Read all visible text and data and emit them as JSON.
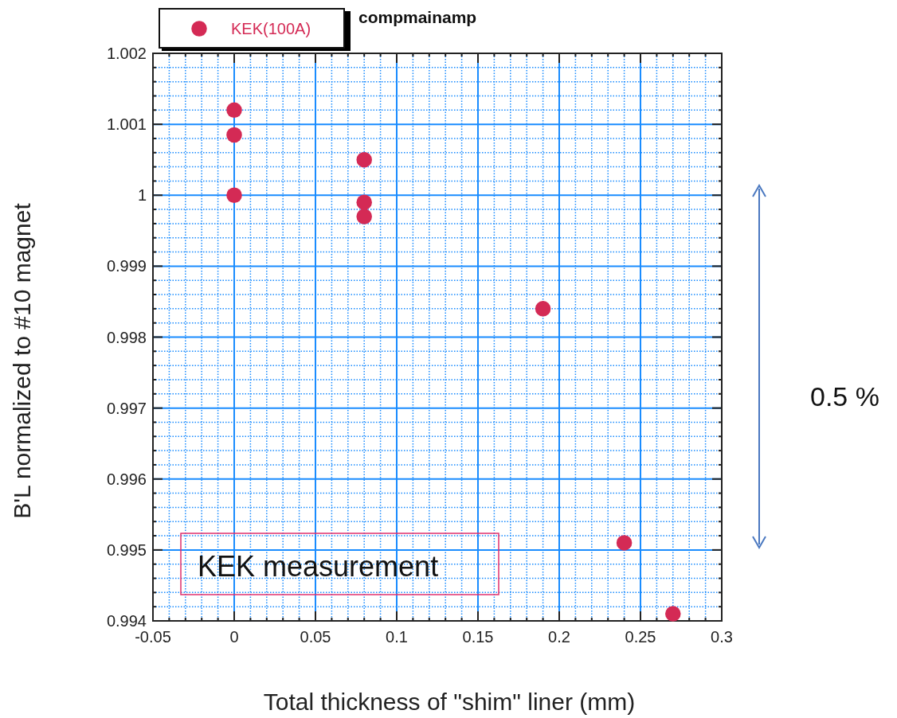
{
  "chart_data": {
    "type": "scatter",
    "title": "compmainamp",
    "xlabel": "Total thickness of \"shim\" liner (mm)",
    "ylabel": "B'L normalized to #10 magnet",
    "series": [
      {
        "name": "KEK(100A)",
        "color": "#d42a55",
        "x": [
          0,
          0,
          0,
          0.08,
          0.08,
          0.08,
          0.19,
          0.24,
          0.27
        ],
        "values": [
          1.0012,
          1.00085,
          1.0,
          1.0005,
          0.9999,
          0.9997,
          0.9984,
          0.9951,
          0.9941
        ]
      }
    ],
    "xlim": [
      -0.05,
      0.3
    ],
    "xticks": [
      -0.05,
      {
        "value": -0.04,
        "label": null
      },
      {
        "value": -0.03,
        "label": null
      },
      {
        "value": -0.02,
        "label": null
      },
      {
        "value": -0.01,
        "label": null
      },
      0,
      {
        "value": 0.01,
        "label": null
      },
      {
        "value": 0.02,
        "label": null
      },
      {
        "value": 0.03,
        "label": null
      },
      {
        "value": 0.04,
        "label": null
      },
      0.05,
      {
        "value": 0.06,
        "label": null
      },
      {
        "value": 0.07,
        "label": null
      },
      {
        "value": 0.08,
        "label": null
      },
      {
        "value": 0.09,
        "label": null
      },
      0.1,
      {
        "value": 0.11,
        "label": null
      },
      {
        "value": 0.12,
        "label": null
      },
      {
        "value": 0.13,
        "label": null
      },
      {
        "value": 0.14,
        "label": null
      },
      0.15,
      {
        "value": 0.16,
        "label": null
      },
      {
        "value": 0.17,
        "label": null
      },
      {
        "value": 0.18,
        "label": null
      },
      {
        "value": 0.19,
        "label": null
      },
      0.2,
      {
        "value": 0.21,
        "label": null
      },
      {
        "value": 0.22,
        "label": null
      },
      {
        "value": 0.23,
        "label": null
      },
      {
        "value": 0.24,
        "label": null
      },
      0.25,
      {
        "value": 0.26,
        "label": null
      },
      {
        "value": 0.27,
        "label": null
      },
      {
        "value": 0.28,
        "label": null
      },
      {
        "value": 0.29,
        "label": null
      },
      0.3
    ],
    "ylim": [
      0.994,
      1.002
    ],
    "yticks": [
      0.994,
      {
        "value": 0.9942,
        "label": null
      },
      {
        "value": 0.9944,
        "label": null
      },
      {
        "value": 0.9946,
        "label": null
      },
      {
        "value": 0.9948,
        "label": null
      },
      0.995,
      {
        "value": 0.9952,
        "label": null
      },
      {
        "value": 0.9954,
        "label": null
      },
      {
        "value": 0.9956,
        "label": null
      },
      {
        "value": 0.9958,
        "label": null
      },
      0.996,
      {
        "value": 0.9962,
        "label": null
      },
      {
        "value": 0.9964,
        "label": null
      },
      {
        "value": 0.9966,
        "label": null
      },
      {
        "value": 0.9968,
        "label": null
      },
      0.997,
      {
        "value": 0.9972,
        "label": null
      },
      {
        "value": 0.9974,
        "label": null
      },
      {
        "value": 0.9976,
        "label": null
      },
      {
        "value": 0.9978,
        "label": null
      },
      0.998,
      {
        "value": 0.9982,
        "label": null
      },
      {
        "value": 0.9984,
        "label": null
      },
      {
        "value": 0.9986,
        "label": null
      },
      {
        "value": 0.9988,
        "label": null
      },
      0.999,
      {
        "value": 0.9992,
        "label": null
      },
      {
        "value": 0.9994,
        "label": null
      },
      {
        "value": 0.9996,
        "label": null
      },
      {
        "value": 0.9998,
        "label": null
      },
      {
        "value": 1,
        "label": "1"
      },
      {
        "value": 1.0002,
        "label": null
      },
      {
        "value": 1.0004,
        "label": null
      },
      {
        "value": 1.0006,
        "label": null
      },
      {
        "value": 1.0008,
        "label": null
      },
      1.001,
      {
        "value": 1.0012,
        "label": null
      },
      {
        "value": 1.0014,
        "label": null
      },
      {
        "value": 1.0016,
        "label": null
      },
      {
        "value": 1.0018,
        "label": null
      },
      1.002
    ],
    "grid": true,
    "legend": "top left",
    "marker": "circle",
    "annotations": [
      "KEK measurement",
      "0.5 %"
    ]
  }
}
